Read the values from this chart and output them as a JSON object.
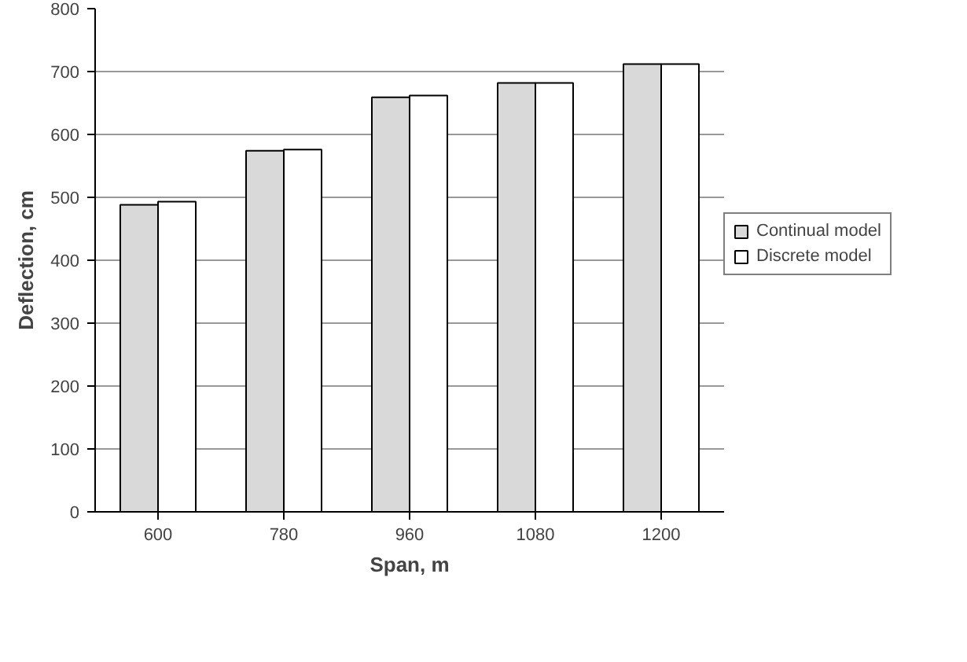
{
  "chart_data": {
    "type": "bar",
    "xlabel": "Span, m",
    "ylabel": "Deflection, cm",
    "categories": [
      "600",
      "780",
      "960",
      "1080",
      "1200"
    ],
    "series": [
      {
        "name": "Continual model",
        "color": "#d9d9d9",
        "values": [
          488,
          574,
          659,
          682,
          712
        ]
      },
      {
        "name": "Discrete model",
        "color": "#ffffff",
        "values": [
          493,
          576,
          662,
          682,
          712
        ]
      }
    ],
    "ylim": [
      0,
      800
    ],
    "yticks": [
      0,
      100,
      200,
      300,
      400,
      500,
      600,
      700,
      800
    ],
    "grid": "y",
    "legend": "right"
  }
}
